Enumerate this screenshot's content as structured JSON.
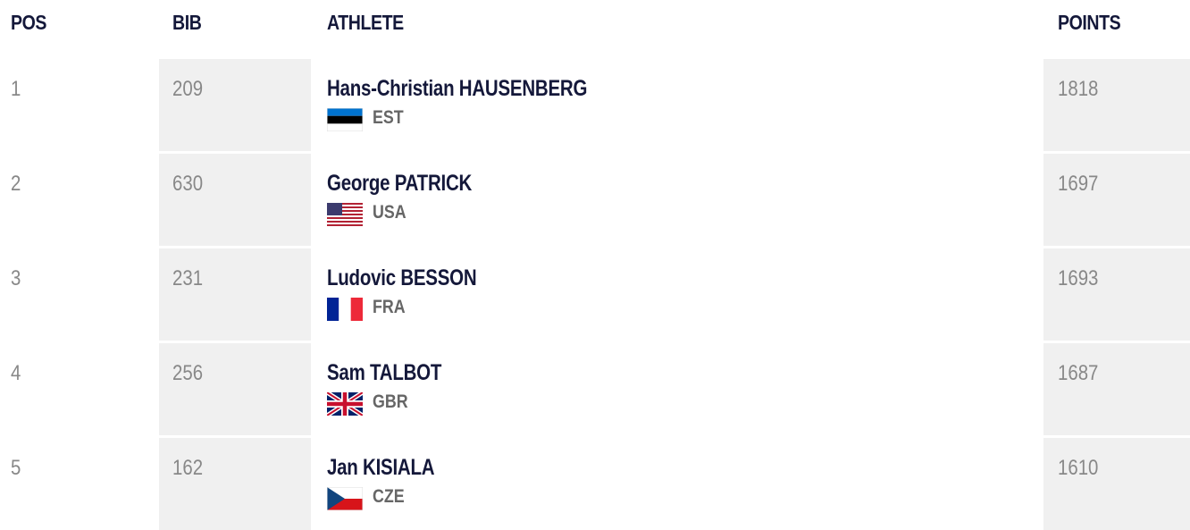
{
  "table": {
    "header": [
      "POS",
      "BIB",
      "ATHLETE",
      "POINTS"
    ],
    "rows": [
      {
        "pos": "1",
        "bib": "209",
        "athlete": "Hans-Christian HAUSENBERG",
        "country": "EST",
        "points": "1818"
      },
      {
        "pos": "2",
        "bib": "630",
        "athlete": "George PATRICK",
        "country": "USA",
        "points": "1697"
      },
      {
        "pos": "3",
        "bib": "231",
        "athlete": "Ludovic BESSON",
        "country": "FRA",
        "points": "1693"
      },
      {
        "pos": "4",
        "bib": "256",
        "athlete": "Sam TALBOT",
        "country": "GBR",
        "points": "1687"
      },
      {
        "pos": "5",
        "bib": "162",
        "athlete": "Jan KISIALA",
        "country": "CZE",
        "points": "1610"
      }
    ]
  }
}
